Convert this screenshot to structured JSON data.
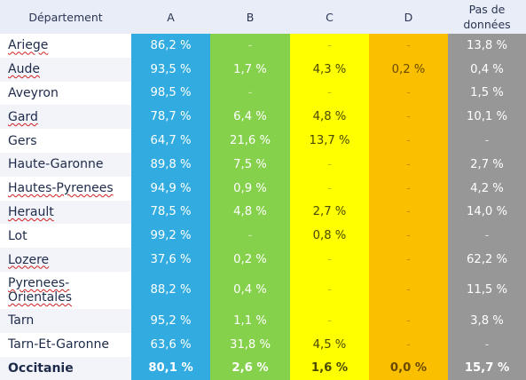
{
  "headers": {
    "dept": "Département",
    "a": "A",
    "b": "B",
    "c": "C",
    "d": "D",
    "pas": "Pas de données"
  },
  "rows": [
    {
      "dept": "Ariege",
      "a": "86,2 %",
      "b": "-",
      "c": "-",
      "d": "-",
      "pas": "13,8 %"
    },
    {
      "dept": "Aude",
      "a": "93,5 %",
      "b": "1,7 %",
      "c": "4,3 %",
      "d": "0,2 %",
      "pas": "0,4 %"
    },
    {
      "dept": "Aveyron",
      "a": "98,5 %",
      "b": "-",
      "c": "-",
      "d": "-",
      "pas": "1,5 %"
    },
    {
      "dept": "Gard",
      "a": "78,7 %",
      "b": "6,4 %",
      "c": "4,8 %",
      "d": "-",
      "pas": "10,1 %"
    },
    {
      "dept": "Gers",
      "a": "64,7 %",
      "b": "21,6 %",
      "c": "13,7 %",
      "d": "-",
      "pas": "-"
    },
    {
      "dept": "Haute-Garonne",
      "a": "89,8 %",
      "b": "7,5 %",
      "c": "-",
      "d": "-",
      "pas": "2,7 %"
    },
    {
      "dept": "Hautes-Pyrenees",
      "a": "94,9 %",
      "b": "0,9 %",
      "c": "-",
      "d": "-",
      "pas": "4,2 %"
    },
    {
      "dept": "Herault",
      "a": "78,5 %",
      "b": "4,8 %",
      "c": "2,7 %",
      "d": "-",
      "pas": "14,0 %"
    },
    {
      "dept": "Lot",
      "a": "99,2 %",
      "b": "-",
      "c": "0,8 %",
      "d": "-",
      "pas": "-"
    },
    {
      "dept": "Lozere",
      "a": "37,6 %",
      "b": "0,2 %",
      "c": "-",
      "d": "-",
      "pas": "62,2 %"
    },
    {
      "dept": "Pyrenees-Orientales",
      "a": "88,2 %",
      "b": "0,4 %",
      "c": "-",
      "d": "-",
      "pas": "11,5 %"
    },
    {
      "dept": "Tarn",
      "a": "95,2 %",
      "b": "1,1 %",
      "c": "-",
      "d": "-",
      "pas": "3,8 %"
    },
    {
      "dept": "Tarn-Et-Garonne",
      "a": "63,6 %",
      "b": "31,8 %",
      "c": "4,5 %",
      "d": "-",
      "pas": "-"
    },
    {
      "dept": "Occitanie",
      "a": "80,1 %",
      "b": "2,6 %",
      "c": "1,6 %",
      "d": "0,0 %",
      "pas": "15,7 %"
    }
  ],
  "colors": {
    "a": "#32ace0",
    "b": "#86d14c",
    "c": "#ffff00",
    "d": "#fac000",
    "pas": "#979797",
    "header_bg": "#e9edf8"
  }
}
